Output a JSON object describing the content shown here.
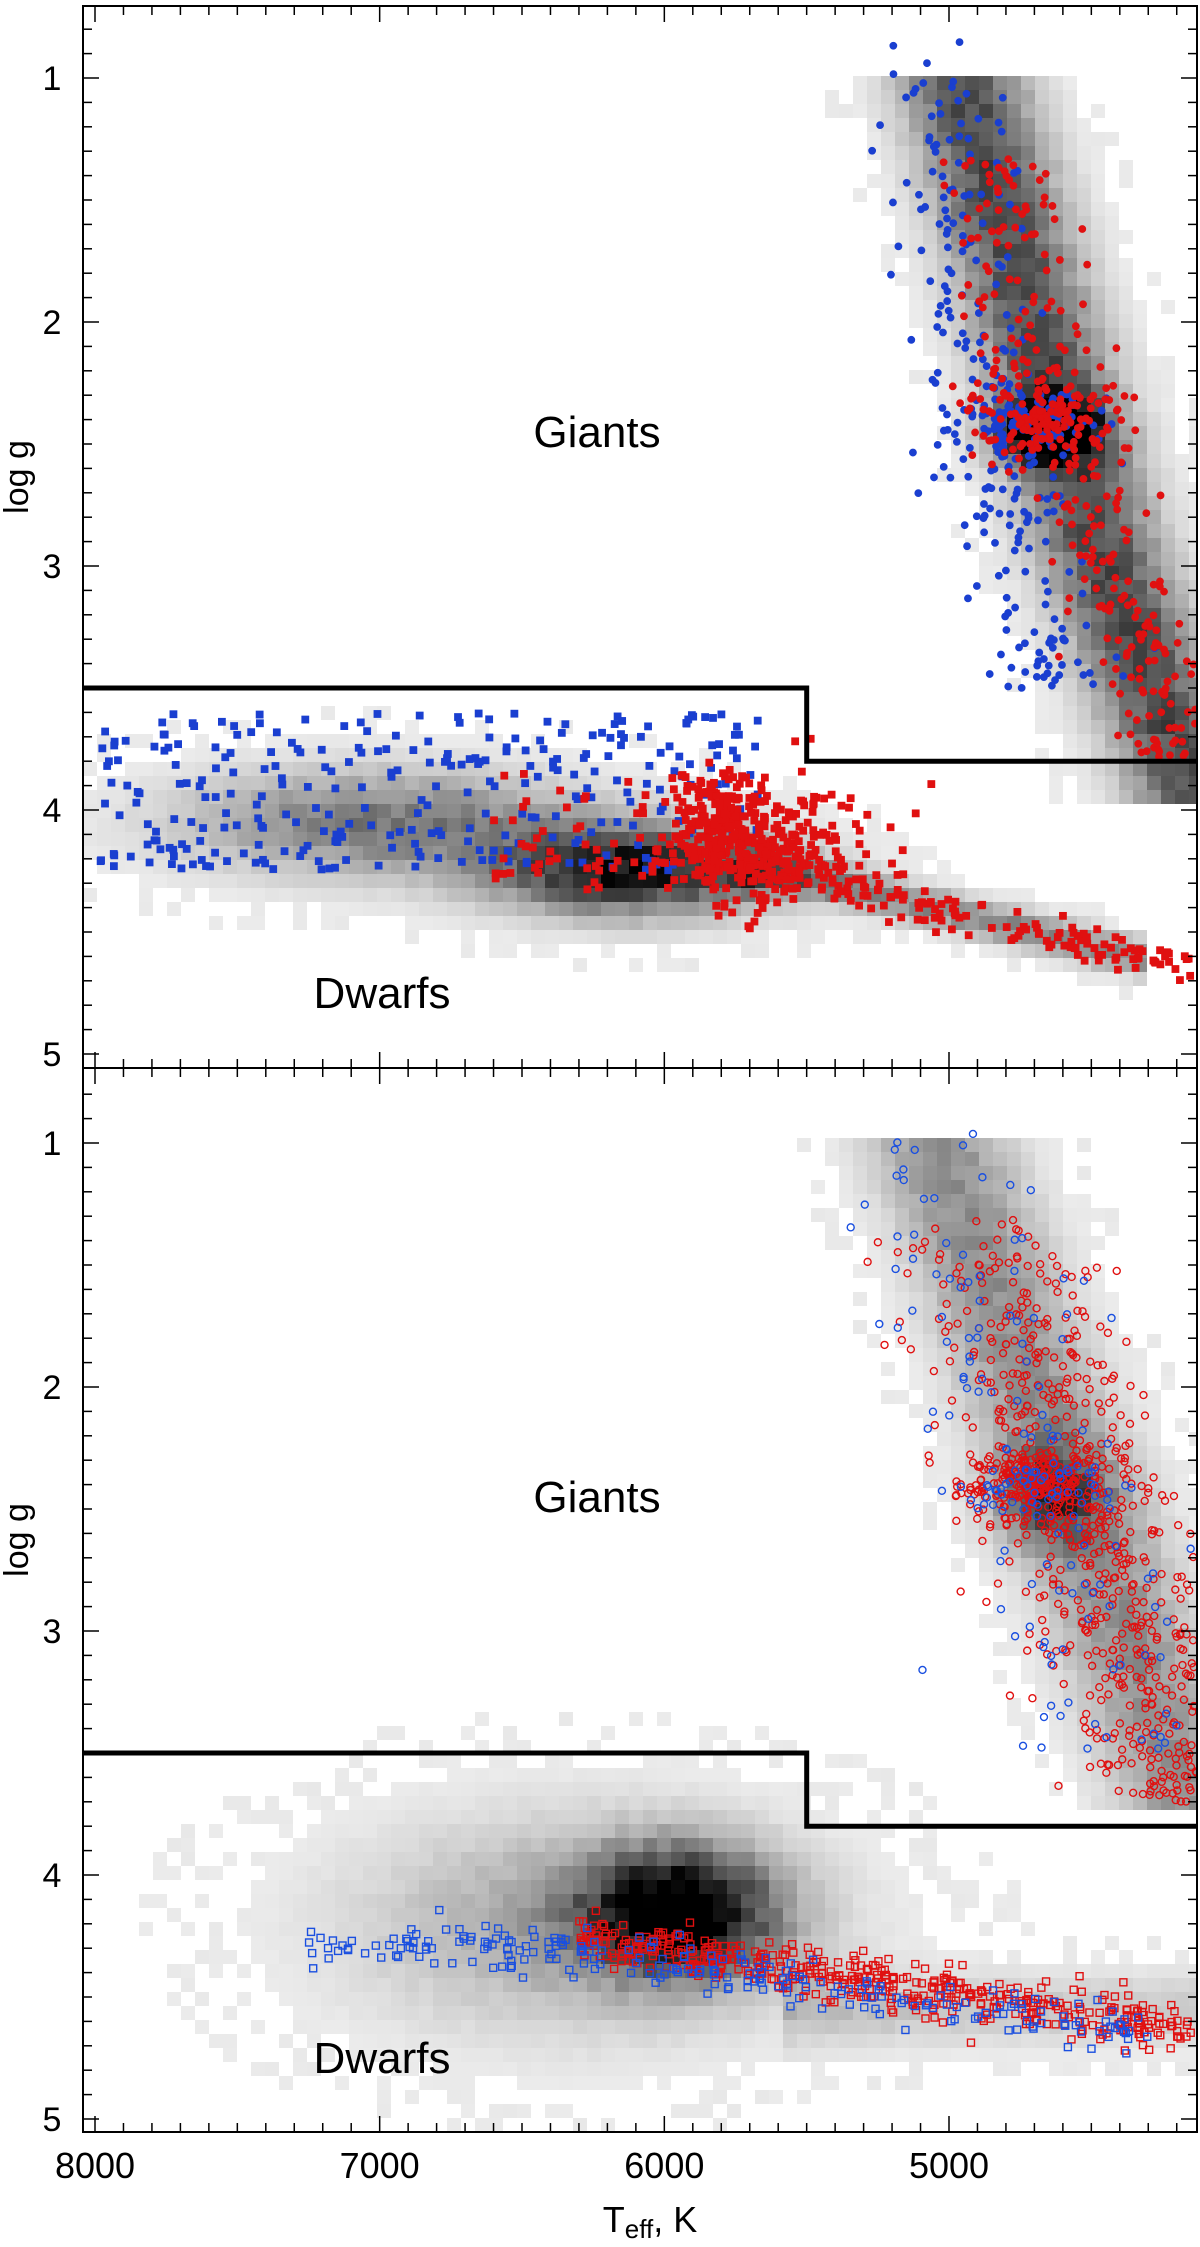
{
  "chart_data": [
    {
      "type": "scatter",
      "panel": "top",
      "ylabel": "log g",
      "xlim": [
        8000,
        4150
      ],
      "ylim": [
        0.7,
        5.05
      ],
      "y_inverted": true,
      "x_inverted": true,
      "yticks": [
        1,
        2,
        3,
        4,
        5
      ],
      "ytick_labels": [
        "1",
        "2",
        "3",
        "4",
        "5"
      ],
      "region_labels": [
        {
          "text": "Giants",
          "x": 6750,
          "y": 2.45
        },
        {
          "text": "Dwarfs",
          "x": 7000,
          "y": 4.75
        }
      ],
      "boundary": [
        [
          8000,
          3.5
        ],
        [
          5500,
          3.5
        ],
        [
          5500,
          3.8
        ],
        [
          4150,
          3.8
        ]
      ],
      "density_background": "grayscale 2D histogram of full sample",
      "series": [
        {
          "marker": "filled-circle",
          "color": "#1a3fd0",
          "region": "giants",
          "count_approx": 430,
          "x_range": [
            5000,
            4150
          ],
          "y_range": [
            0.85,
            3.5
          ]
        },
        {
          "marker": "filled-circle",
          "color": "#e01010",
          "region": "giants",
          "count_approx": 520,
          "x_range": [
            5200,
            4150
          ],
          "y_range": [
            1.3,
            3.8
          ]
        },
        {
          "marker": "filled-square",
          "color": "#1a3fd0",
          "region": "dwarfs",
          "count_approx": 380,
          "x_range": [
            8000,
            5650
          ],
          "y_range": [
            3.55,
            4.3
          ]
        },
        {
          "marker": "filled-square",
          "color": "#e01010",
          "region": "dwarfs",
          "count_approx": 820,
          "x_range": [
            6600,
            4150
          ],
          "y_range": [
            3.75,
            4.75
          ]
        }
      ]
    },
    {
      "type": "scatter",
      "panel": "bottom",
      "xlabel_main": "T",
      "xlabel_sub": "eff",
      "xlabel_rest": ", K",
      "ylabel": "log g",
      "xlim": [
        8000,
        4150
      ],
      "ylim": [
        0.7,
        5.05
      ],
      "y_inverted": true,
      "x_inverted": true,
      "xticks": [
        8000,
        7000,
        6000,
        5000
      ],
      "xtick_labels": [
        "8000",
        "7000",
        "6000",
        "5000"
      ],
      "yticks": [
        1,
        2,
        3,
        4,
        5
      ],
      "ytick_labels": [
        "1",
        "2",
        "3",
        "4",
        "5"
      ],
      "region_labels": [
        {
          "text": "Giants",
          "x": 6750,
          "y": 2.45
        },
        {
          "text": "Dwarfs",
          "x": 7000,
          "y": 4.75
        }
      ],
      "boundary": [
        [
          8000,
          3.5
        ],
        [
          5500,
          3.5
        ],
        [
          5500,
          3.8
        ],
        [
          4150,
          3.8
        ]
      ],
      "density_background": "grayscale 2D histogram of full sample",
      "series": [
        {
          "marker": "open-circle",
          "color": "#e01010",
          "region": "giants",
          "count_approx": 1100,
          "x_range": [
            5200,
            4150
          ],
          "y_range": [
            1.3,
            3.7
          ]
        },
        {
          "marker": "open-circle",
          "color": "#1a4fe0",
          "region": "giants",
          "count_approx": 230,
          "x_range": [
            5500,
            4150
          ],
          "y_range": [
            0.9,
            3.5
          ]
        },
        {
          "marker": "open-square",
          "color": "#e01010",
          "region": "dwarfs",
          "count_approx": 600,
          "x_range": [
            6300,
            4150
          ],
          "y_range": [
            4.25,
            4.85
          ]
        },
        {
          "marker": "open-square",
          "color": "#1a4fe0",
          "region": "dwarfs",
          "count_approx": 300,
          "x_range": [
            7250,
            4300
          ],
          "y_range": [
            4.15,
            4.85
          ]
        }
      ]
    }
  ]
}
